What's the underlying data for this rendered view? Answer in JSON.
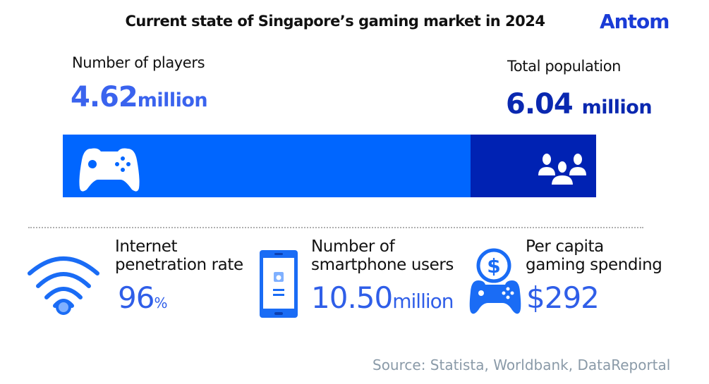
{
  "title": "Current state of Singapore’s gaming market in 2024",
  "logo": "Antom",
  "players": {
    "label": "Number of players",
    "value": "4.62",
    "unit": "million"
  },
  "population": {
    "label": "Total population",
    "value": "6.04",
    "unit": "million"
  },
  "bar": {
    "players_millions": 4.62,
    "population_millions": 6.04,
    "players_color": "#0066ff",
    "population_color": "#0022b3",
    "players_icon": "gamepad-icon",
    "population_icon": "people-group-icon"
  },
  "stats": [
    {
      "label_line1": "Internet",
      "label_line2": "penetration rate",
      "value": "96",
      "unit": "%",
      "icon": "wifi-icon"
    },
    {
      "label_line1": "Number of",
      "label_line2": "smartphone users",
      "value": "10.50",
      "unit": "million",
      "icon": "smartphone-icon"
    },
    {
      "label_line1": "Per capita",
      "label_line2": "gaming spending",
      "value": "$292",
      "unit": "",
      "icon": "gamepad-dollar-icon"
    }
  ],
  "source": "Source: Statista, Worldbank, DataReportal"
}
